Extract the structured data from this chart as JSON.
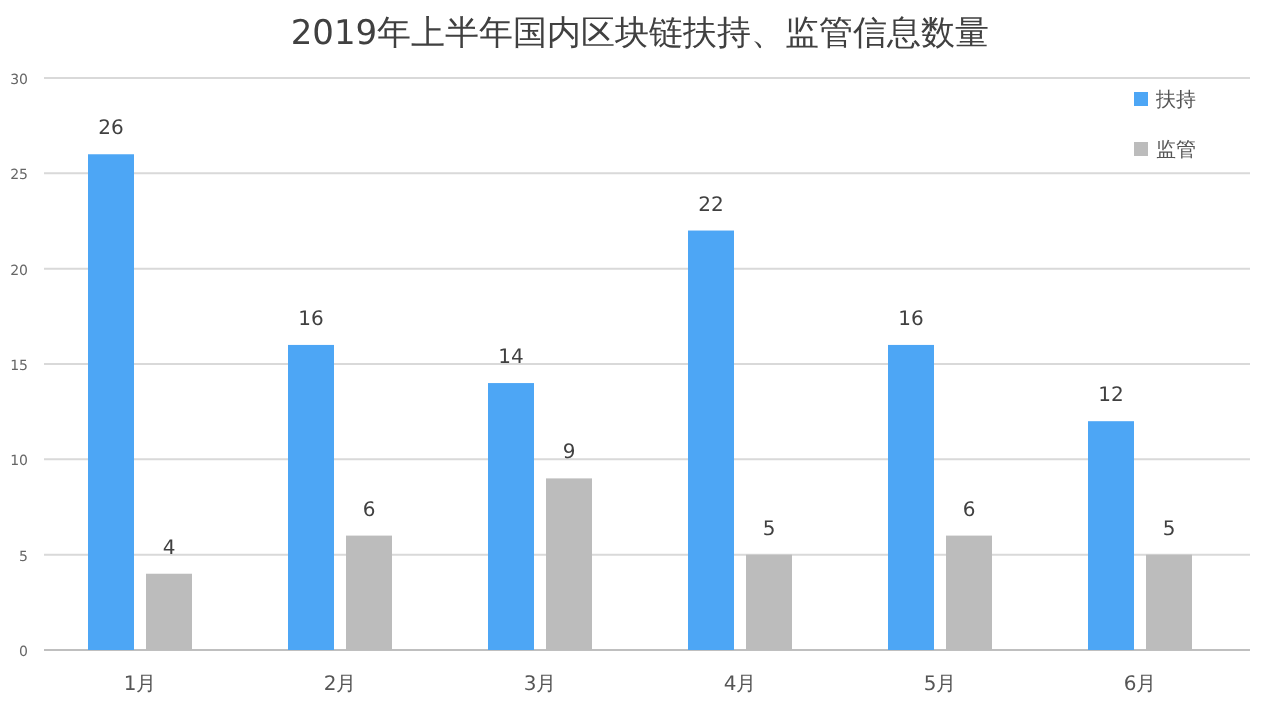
{
  "chart_data": {
    "type": "bar",
    "title": "2019年上半年国内区块链扶持、监管信息数量",
    "categories": [
      "1月",
      "2月",
      "3月",
      "4月",
      "5月",
      "6月"
    ],
    "series": [
      {
        "name": "扶持",
        "color": "#4da6f5",
        "values": [
          26,
          16,
          14,
          22,
          16,
          12
        ]
      },
      {
        "name": "监管",
        "color": "#bcbcbc",
        "values": [
          4,
          6,
          9,
          5,
          6,
          5
        ]
      }
    ],
    "ylim": [
      0,
      30
    ],
    "yticks": [
      0,
      5,
      10,
      15,
      20,
      25,
      30
    ],
    "grid": "y",
    "legend": "top right",
    "data_labels": true
  }
}
